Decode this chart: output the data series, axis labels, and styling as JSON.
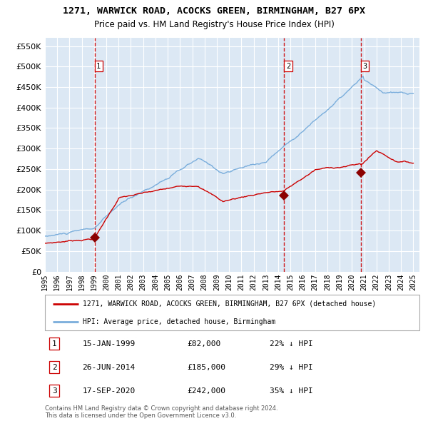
{
  "title": "1271, WARWICK ROAD, ACOCKS GREEN, BIRMINGHAM, B27 6PX",
  "subtitle": "Price paid vs. HM Land Registry's House Price Index (HPI)",
  "ylim": [
    0,
    570000
  ],
  "yticks": [
    0,
    50000,
    100000,
    150000,
    200000,
    250000,
    300000,
    350000,
    400000,
    450000,
    500000,
    550000
  ],
  "sale_dates": [
    1999.04,
    2014.48,
    2020.71
  ],
  "sale_prices": [
    82000,
    185000,
    242000
  ],
  "sale_labels": [
    "1",
    "2",
    "3"
  ],
  "sale_info": [
    {
      "num": "1",
      "date": "15-JAN-1999",
      "price": "£82,000",
      "pct": "22% ↓ HPI"
    },
    {
      "num": "2",
      "date": "26-JUN-2014",
      "price": "£185,000",
      "pct": "29% ↓ HPI"
    },
    {
      "num": "3",
      "date": "17-SEP-2020",
      "price": "£242,000",
      "pct": "35% ↓ HPI"
    }
  ],
  "legend_red_label": "1271, WARWICK ROAD, ACOCKS GREEN, BIRMINGHAM, B27 6PX (detached house)",
  "legend_blue_label": "HPI: Average price, detached house, Birmingham",
  "footer": "Contains HM Land Registry data © Crown copyright and database right 2024.\nThis data is licensed under the Open Government Licence v3.0.",
  "bg_color": "#dce9f5",
  "grid_color": "#ffffff",
  "red_color": "#cc0000",
  "blue_color": "#7aaddb",
  "vline_color": "#cc0000"
}
